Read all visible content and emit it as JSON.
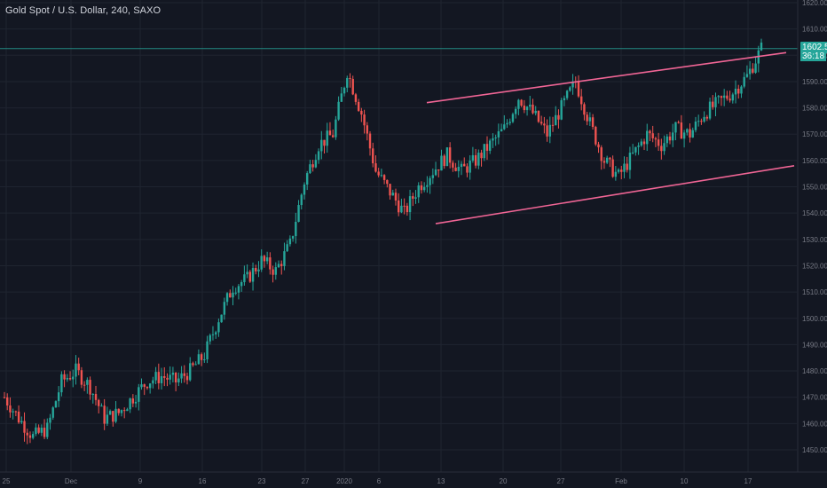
{
  "header": {
    "title": "Gold Spot / U.S. Dollar, 240, SAXO"
  },
  "last_price": {
    "value": "1602.54",
    "countdown": "36:18"
  },
  "colors": {
    "background": "#131722",
    "grid": "#1f2430",
    "axis_text": "#787b86",
    "up": "#26a69a",
    "down": "#ef5350",
    "trendline": "#f06595",
    "price_line": "#26a69a"
  },
  "chart_data": {
    "type": "candlestick",
    "title": "Gold Spot / U.S. Dollar, 240, SAXO",
    "y_ticks": [
      "1620.00",
      "1610.00",
      "1600.00",
      "1590.00",
      "1580.00",
      "1570.00",
      "1560.00",
      "1550.00",
      "1540.00",
      "1530.00",
      "1520.00",
      "1510.00",
      "1500.00",
      "1490.00",
      "1480.00",
      "1470.00",
      "1460.00",
      "1450.00"
    ],
    "x_ticks": [
      "25",
      "Dec",
      "9",
      "16",
      "23",
      "27",
      "2020",
      "6",
      "13",
      "20",
      "27",
      "Feb",
      "10",
      "17"
    ],
    "ylim": [
      1445,
      1625
    ],
    "grid": true,
    "close_path": [
      [
        "25",
        1470
      ],
      [
        "",
        1462
      ],
      [
        "",
        1455
      ],
      [
        "Dec",
        1458
      ],
      [
        "",
        1476
      ],
      [
        "",
        1480
      ],
      [
        "",
        1474
      ],
      [
        "9",
        1462
      ],
      [
        "",
        1464
      ],
      [
        "",
        1470
      ],
      [
        "16",
        1476
      ],
      [
        "",
        1478
      ],
      [
        "",
        1476
      ],
      [
        "",
        1480
      ],
      [
        "23",
        1486
      ],
      [
        "",
        1500
      ],
      [
        "",
        1512
      ],
      [
        "27",
        1515
      ],
      [
        "",
        1522
      ],
      [
        "2020",
        1518
      ],
      [
        "",
        1528
      ],
      [
        "",
        1552
      ],
      [
        "6",
        1566
      ],
      [
        "",
        1570
      ],
      [
        "",
        1594
      ],
      [
        "",
        1578
      ],
      [
        "",
        1556
      ],
      [
        "",
        1548
      ],
      [
        "13",
        1540
      ],
      [
        "",
        1550
      ],
      [
        "",
        1556
      ],
      [
        "",
        1562
      ],
      [
        "20",
        1556
      ],
      [
        "",
        1560
      ],
      [
        "",
        1566
      ],
      [
        "",
        1572
      ],
      [
        "27",
        1584
      ],
      [
        "",
        1578
      ],
      [
        "",
        1570
      ],
      [
        "",
        1580
      ],
      [
        "",
        1590
      ],
      [
        "Feb",
        1574
      ],
      [
        "",
        1560
      ],
      [
        "",
        1554
      ],
      [
        "",
        1562
      ],
      [
        "",
        1570
      ],
      [
        "10",
        1566
      ],
      [
        "",
        1572
      ],
      [
        "",
        1570
      ],
      [
        "",
        1578
      ],
      [
        "",
        1582
      ],
      [
        "17",
        1586
      ],
      [
        "",
        1592
      ],
      [
        "",
        1602.54
      ]
    ],
    "trendlines": [
      {
        "name": "",
        "from": [
          "13",
          1582
        ],
        "to": [
          "17",
          1601
        ]
      },
      {
        "name": "",
        "from": [
          "13",
          1536
        ],
        "to": [
          "17",
          1558
        ]
      }
    ],
    "last_price": 1602.54
  }
}
